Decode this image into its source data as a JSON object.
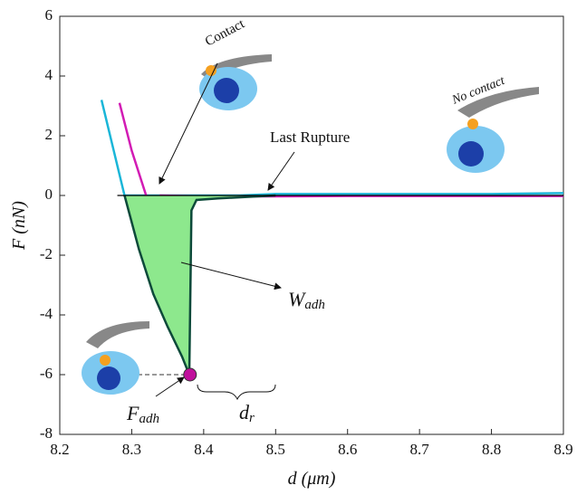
{
  "chart_data": {
    "type": "line",
    "xlabel": {
      "base": "d",
      "unit": "(μm)"
    },
    "ylabel": {
      "base": "F",
      "unit": "(nN)"
    },
    "xlim": [
      8.2,
      8.9
    ],
    "xticks": [
      8.2,
      8.3,
      8.4,
      8.5,
      8.6,
      8.7,
      8.8,
      8.9
    ],
    "ylim": [
      -8,
      6
    ],
    "yticks": [
      -8,
      -6,
      -4,
      -2,
      0,
      2,
      4,
      6
    ],
    "series": [
      {
        "color": "#1ab6d8",
        "x": [
          8.258,
          8.275,
          8.29,
          8.35,
          8.4,
          8.45,
          8.5,
          8.6,
          8.7,
          8.8,
          8.9
        ],
        "values": [
          3.2,
          1.5,
          0,
          0,
          0,
          0,
          0.05,
          0.05,
          0.05,
          0.05,
          0.08
        ]
      },
      {
        "color": "#d21cb4",
        "x": [
          8.283,
          8.3,
          8.32,
          8.33,
          8.34,
          8.4,
          8.5,
          8.6,
          8.7,
          8.8,
          8.9
        ],
        "values": [
          3.1,
          1.5,
          0,
          -0.45,
          0,
          -0.03,
          -0.03,
          -0.02,
          -0.02,
          -0.02,
          -0.02
        ]
      },
      {
        "color": "#0d4a3a",
        "fill": "#8de88d",
        "x": [
          8.29,
          8.31,
          8.33,
          8.35,
          8.37,
          8.38,
          8.383,
          8.39,
          8.42,
          8.46,
          8.5
        ],
        "values": [
          0,
          -1.8,
          -3.3,
          -4.4,
          -5.4,
          -6,
          -0.5,
          -0.15,
          -0.1,
          -0.05,
          0
        ]
      },
      {
        "color": "#000000",
        "x": [
          8.28,
          8.9
        ],
        "values": [
          0,
          0
        ]
      }
    ],
    "rupture_point": {
      "x": 8.381,
      "y": -6,
      "color": "#c0109c"
    },
    "annotations": {
      "contact": "Contact",
      "no_contact": "No contact",
      "last_rupture": "Last Rupture",
      "work": {
        "base": "W",
        "sub": "adh"
      },
      "force": {
        "base": "F",
        "sub": "adh"
      },
      "distance": {
        "base": "d",
        "sub": "r"
      }
    }
  }
}
